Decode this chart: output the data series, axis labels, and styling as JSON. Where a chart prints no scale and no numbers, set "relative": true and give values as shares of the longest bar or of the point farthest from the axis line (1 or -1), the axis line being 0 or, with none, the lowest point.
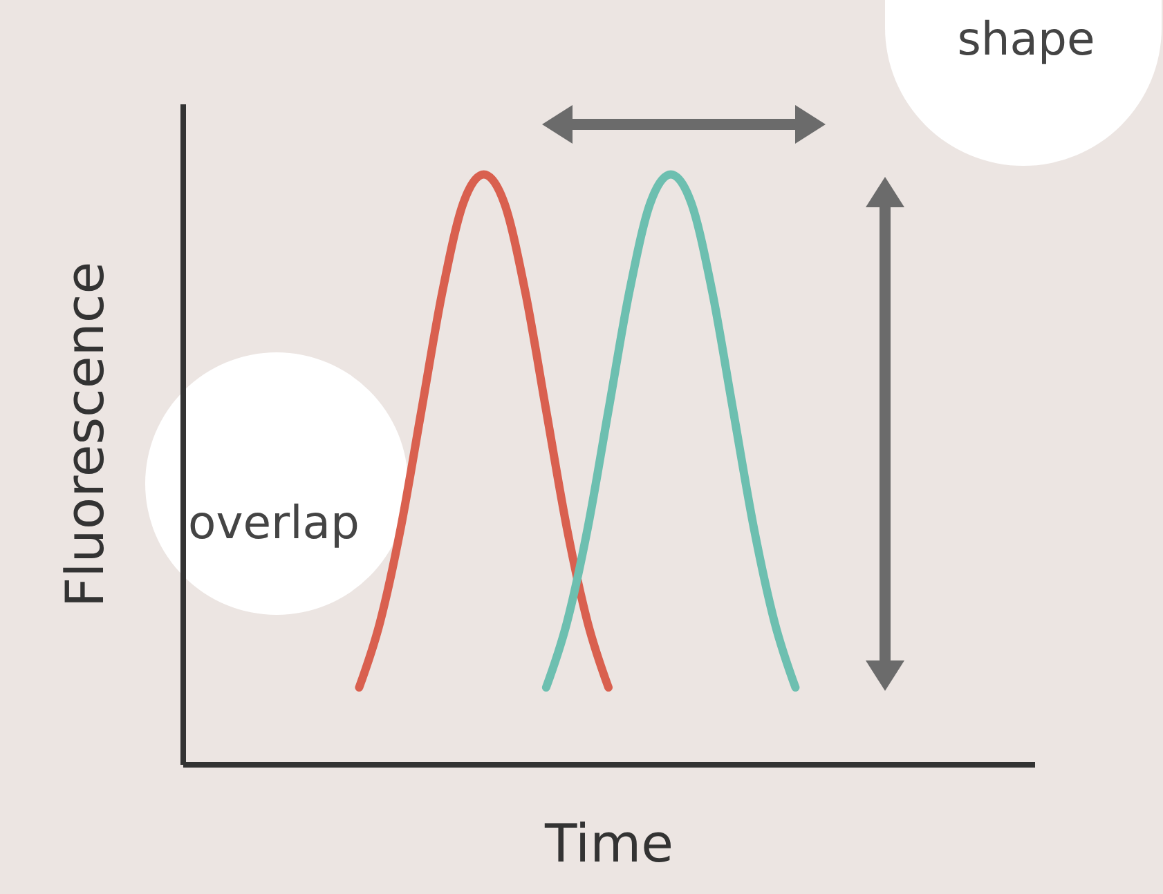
{
  "chart_data": {
    "type": "line",
    "relative": true,
    "xlabel": "Time",
    "ylabel": "Fluorescence",
    "categories": [
      null,
      null,
      null,
      null,
      null,
      null,
      null,
      null,
      null,
      null,
      null,
      null,
      null,
      null,
      null,
      null,
      null,
      null,
      null,
      null,
      null,
      null,
      null,
      null,
      null,
      null,
      null,
      null,
      null,
      null,
      null,
      null,
      null,
      null,
      null,
      null,
      null,
      null,
      null,
      null,
      null
    ],
    "series": [
      {
        "color": "#d9604f",
        "values": [
          null,
          null,
          null,
          null,
          null,
          null,
          null,
          null,
          0.13,
          0.24,
          0.4,
          0.6,
          0.8,
          0.95,
          1,
          0.95,
          0.8,
          0.6,
          0.4,
          0.24,
          0.13,
          null,
          null,
          null,
          null,
          null,
          null,
          null,
          null,
          null,
          null,
          null,
          null,
          null,
          null,
          null,
          null,
          null,
          null,
          null,
          null
        ]
      },
      {
        "color": "#6dbfb0",
        "values": [
          null,
          null,
          null,
          null,
          null,
          null,
          null,
          null,
          null,
          null,
          null,
          null,
          null,
          null,
          null,
          null,
          null,
          0.13,
          0.24,
          0.4,
          0.6,
          0.8,
          0.95,
          1,
          0.95,
          0.8,
          0.6,
          0.4,
          0.24,
          0.13,
          null,
          null,
          null,
          null,
          null,
          null,
          null,
          null,
          null,
          null,
          null
        ]
      }
    ],
    "annotations": [
      "shape",
      "overlap"
    ],
    "marker": "none"
  }
}
